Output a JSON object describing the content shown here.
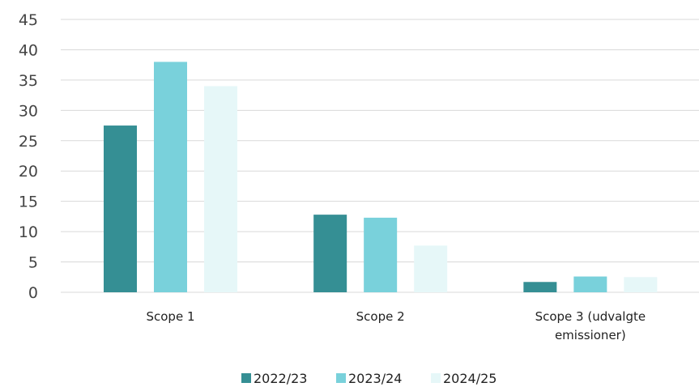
{
  "chart_data": {
    "type": "bar",
    "categories": [
      "Scope 1",
      "Scope 2",
      "Scope 3 (udvalgte emissioner)"
    ],
    "category_lines": [
      [
        "Scope 1"
      ],
      [
        "Scope 2"
      ],
      [
        "Scope 3 (udvalgte",
        "emissioner)"
      ]
    ],
    "series": [
      {
        "name": "2022/23",
        "values": [
          27.5,
          12.8,
          1.7
        ],
        "color": "#358f94"
      },
      {
        "name": "2023/24",
        "values": [
          38.0,
          12.3,
          2.6
        ],
        "color": "#79d1db"
      },
      {
        "name": "2024/25",
        "values": [
          34.0,
          7.7,
          2.5
        ],
        "color": "#e6f7f8"
      }
    ],
    "ylim": [
      0,
      45
    ],
    "yticks": [
      0,
      5,
      10,
      15,
      20,
      25,
      30,
      35,
      40,
      45
    ],
    "grid": true,
    "legend": "bottom",
    "title": "",
    "xlabel": "",
    "ylabel": ""
  }
}
